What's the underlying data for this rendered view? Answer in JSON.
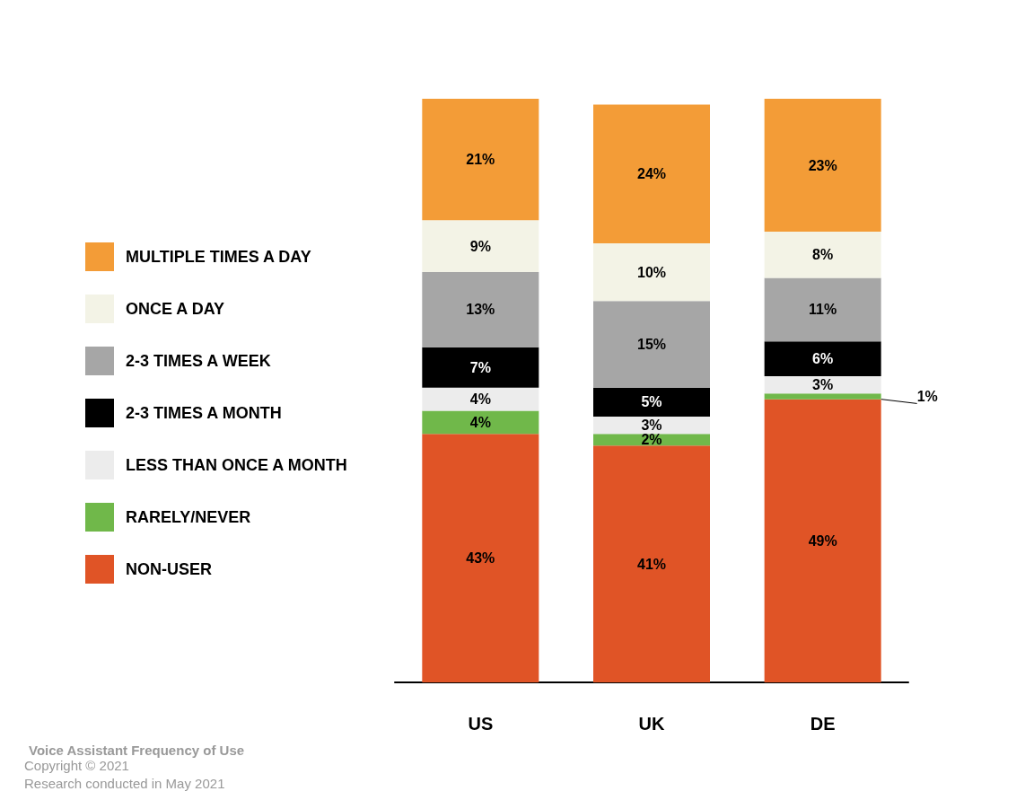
{
  "chart_data": {
    "type": "bar",
    "stacked": true,
    "title": "Voice Assistant Frequency of Use",
    "categories": [
      "US",
      "UK",
      "DE"
    ],
    "series": [
      {
        "name": "NON-USER",
        "color": "#e05426",
        "values": [
          43,
          41,
          49
        ],
        "value_labels": [
          "43%",
          "41%",
          "49%"
        ]
      },
      {
        "name": "RARELY/NEVER",
        "color": "#70b84a",
        "values": [
          4,
          2,
          1
        ],
        "value_labels": [
          "4%",
          "2%",
          "1%"
        ]
      },
      {
        "name": "LESS THAN ONCE A MONTH",
        "color": "#ececec",
        "values": [
          4,
          3,
          3
        ],
        "value_labels": [
          "4%",
          "3%",
          "3%"
        ]
      },
      {
        "name": "2-3 TIMES A MONTH",
        "color": "#000000",
        "values": [
          7,
          5,
          6
        ],
        "value_labels": [
          "7%",
          "5%",
          "6%"
        ]
      },
      {
        "name": "2-3 TIMES A WEEK",
        "color": "#a6a6a6",
        "values": [
          13,
          15,
          11
        ],
        "value_labels": [
          "13%",
          "15%",
          "11%"
        ]
      },
      {
        "name": "ONCE A DAY",
        "color": "#f3f3e6",
        "values": [
          9,
          10,
          8
        ],
        "value_labels": [
          "9%",
          "10%",
          "8%"
        ]
      },
      {
        "name": "MULTIPLE TIMES A DAY",
        "color": "#f39c37",
        "values": [
          21,
          24,
          23
        ],
        "value_labels": [
          "21%",
          "24%",
          "23%"
        ]
      }
    ],
    "legend": "left",
    "annotations": [
      "Copyright © 2021",
      "Research conducted in May 2021"
    ]
  }
}
